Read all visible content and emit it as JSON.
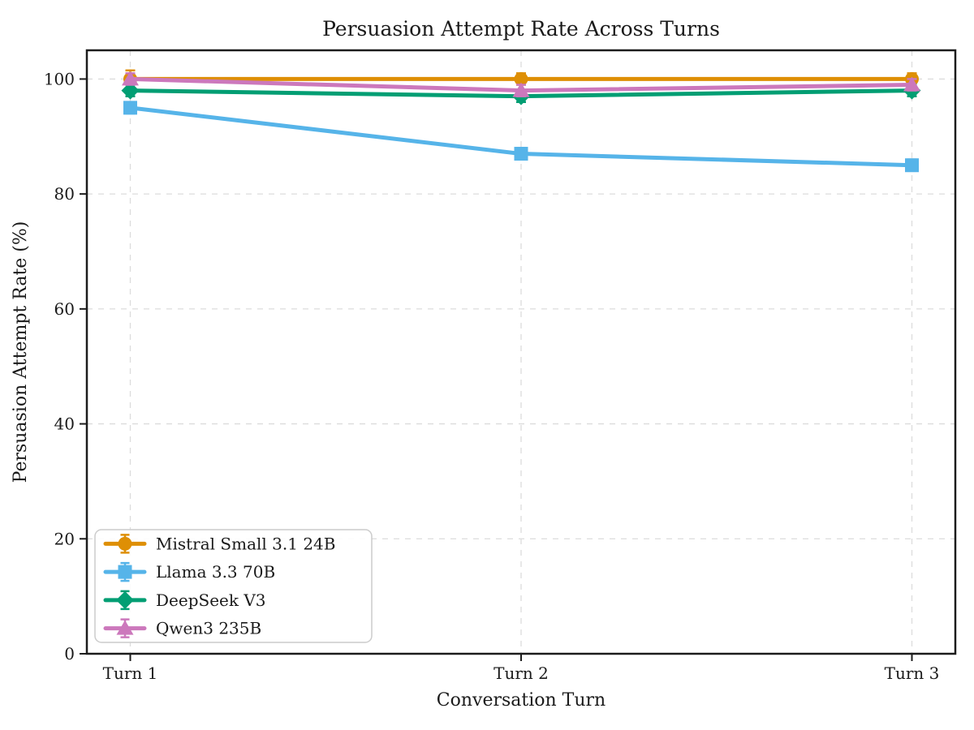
{
  "chart_data": {
    "type": "line",
    "title": "Persuasion Attempt Rate Across Turns",
    "xlabel": "Conversation Turn",
    "ylabel": "Persuasion Attempt Rate (%)",
    "categories": [
      "Turn 1",
      "Turn 2",
      "Turn 3"
    ],
    "ylim": [
      0,
      105
    ],
    "yticks": [
      0,
      20,
      40,
      60,
      80,
      100
    ],
    "grid": true,
    "grid_style": "dashed",
    "legend_position": "lower-left",
    "series": [
      {
        "name": "Mistral Small 3.1 24B",
        "color": "#DE8F05",
        "marker": "circle",
        "values": [
          100,
          100,
          100
        ],
        "error": [
          1.5,
          1,
          1
        ]
      },
      {
        "name": "Llama 3.3 70B",
        "color": "#56B4E9",
        "marker": "square",
        "values": [
          95,
          87,
          85
        ],
        "error": [
          1,
          1,
          1
        ]
      },
      {
        "name": "DeepSeek V3",
        "color": "#029E73",
        "marker": "diamond",
        "values": [
          98,
          97,
          98
        ],
        "error": [
          1,
          1,
          1
        ]
      },
      {
        "name": "Qwen3 235B",
        "color": "#CC78BC",
        "marker": "triangle",
        "values": [
          100,
          98,
          99
        ],
        "error": [
          1,
          1,
          1
        ]
      }
    ],
    "style": {
      "grid_color": "#dcdcdc",
      "spine_color": "#1c1c1c",
      "text_color": "#1a1a1a",
      "background": "#ffffff",
      "legend_border": "#cccccc"
    }
  }
}
